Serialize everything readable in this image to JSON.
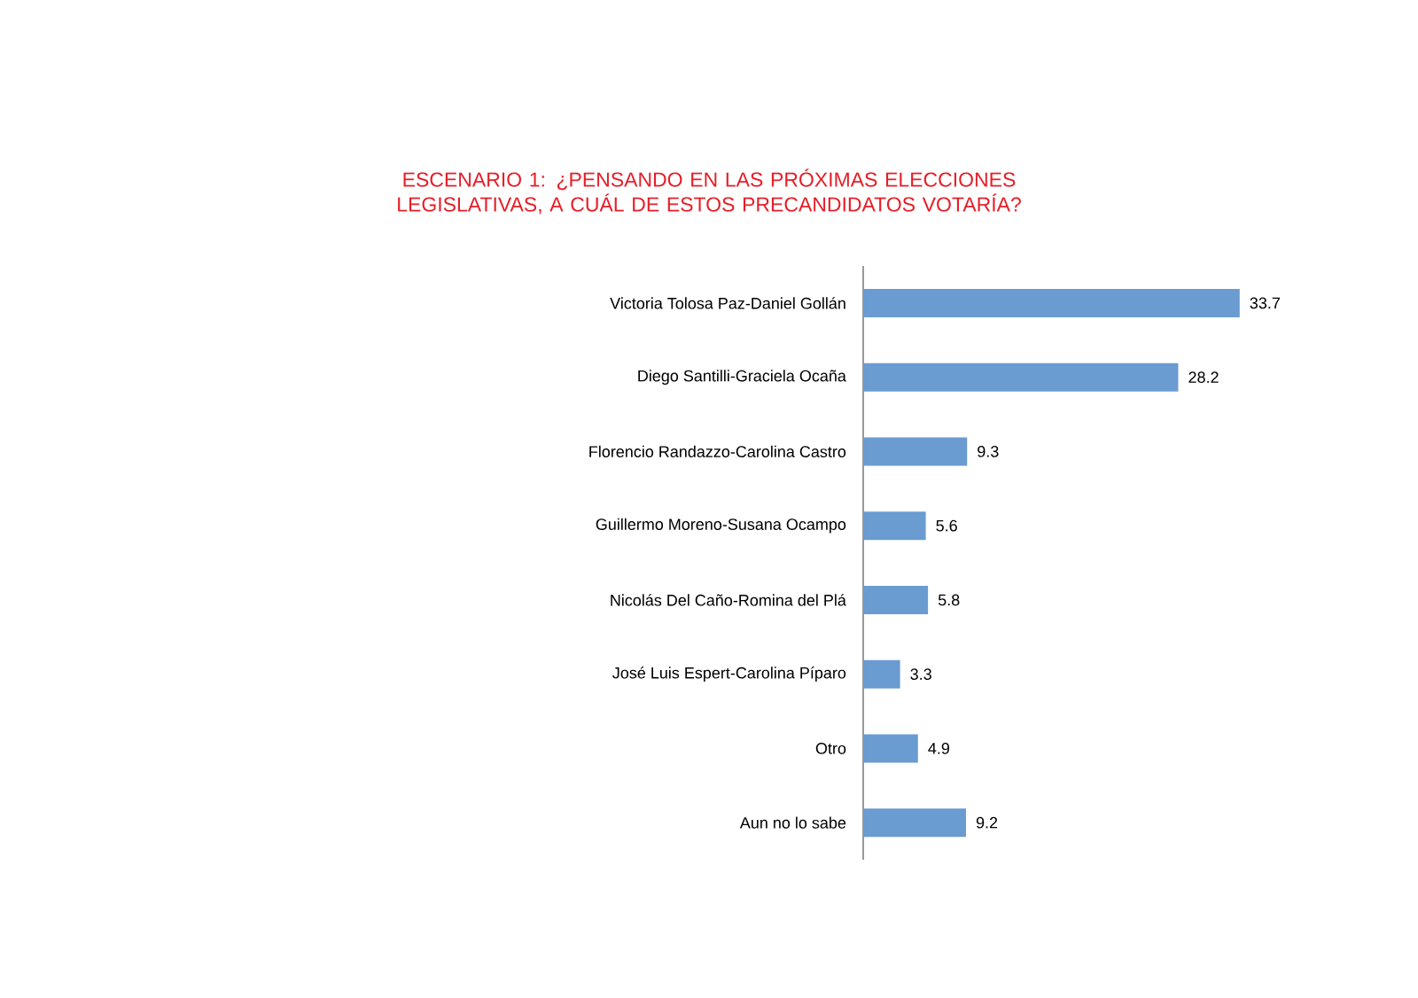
{
  "chart_data": {
    "type": "bar",
    "orientation": "horizontal",
    "title": "ESCENARIO 1: ¿PENSANDO EN LAS PRÓXIMAS ELECCIONES LEGISLATIVAS, A CUÁL DE ESTOS PRECANDIDATOS VOTARÍA?",
    "categories": [
      "Victoria Tolosa Paz-Daniel Gollán",
      "Diego Santilli-Graciela Ocaña",
      "Florencio Randazzo-Carolina Castro",
      "Guillermo Moreno-Susana Ocampo",
      "Nicolás Del Caño-Romina del Plá",
      "José Luis Espert-Carolina Píparo",
      "Otro",
      "Aun no lo sabe"
    ],
    "values": [
      33.7,
      28.2,
      9.3,
      5.6,
      5.8,
      3.3,
      4.9,
      9.2
    ],
    "color": "#6a9bd1",
    "data_labels": true
  }
}
